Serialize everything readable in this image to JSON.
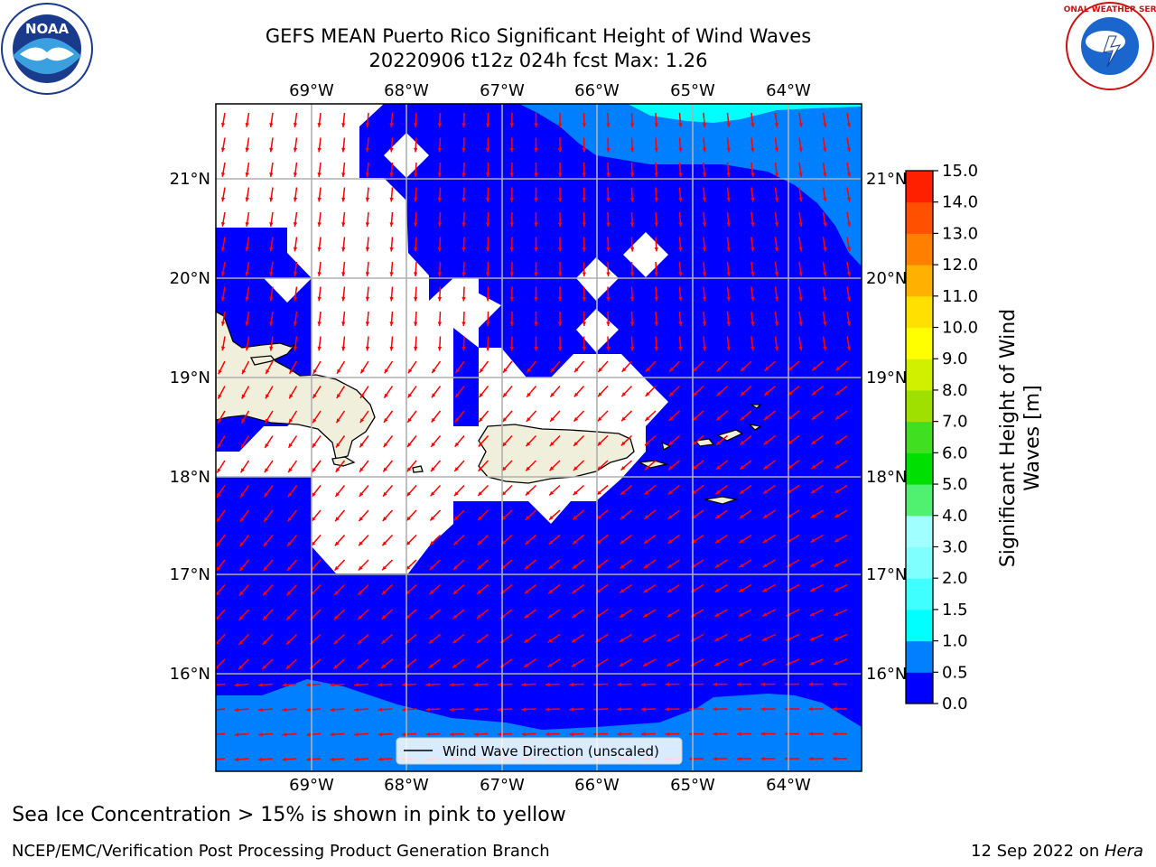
{
  "title": {
    "line1": "GEFS MEAN Puerto Rico Significant Height of Wind Waves",
    "line2": "20220906 t12z 024h fcst   Max: 1.26"
  },
  "map": {
    "longitude_labels": [
      "69°W",
      "68°W",
      "67°W",
      "66°W",
      "65°W",
      "64°W"
    ],
    "latitude_labels": [
      "21°N",
      "20°N",
      "19°N",
      "18°N",
      "17°N",
      "16°N"
    ],
    "legend_label": "Wind Wave Direction (unscaled)",
    "ocean_color": "#0000ff",
    "band_color": "#0080ff",
    "cyan_color": "#00ffff",
    "land_color": "#efefdc",
    "arrow_color": "#ff0000"
  },
  "colorbar": {
    "label_line1": "Significant Height of Wind",
    "label_line2": "Waves [m]",
    "tick_labels": [
      "0.0",
      "0.5",
      "1.0",
      "1.5",
      "2.0",
      "3.0",
      "4.0",
      "5.0",
      "6.0",
      "7.0",
      "8.0",
      "9.0",
      "10.0",
      "11.0",
      "12.0",
      "13.0",
      "14.0",
      "15.0"
    ],
    "colors": [
      "#0000ff",
      "#0080ff",
      "#00ffff",
      "#40ffff",
      "#80ffff",
      "#a0ffff",
      "#50f070",
      "#00e000",
      "#40e020",
      "#a0e000",
      "#d0f000",
      "#ffff00",
      "#ffe000",
      "#ffb000",
      "#ff8000",
      "#ff5000",
      "#ff2000"
    ]
  },
  "ice_note": "Sea Ice Concentration > 15% is shown in pink to yellow",
  "footer": {
    "left": "NCEP/EMC/Verification Post Processing Product Generation Branch",
    "right_prefix": "12 Sep 2022 on ",
    "right_machine": "Hera"
  },
  "logos": {
    "noaa_text": "NOAA",
    "nws_text": "NATIONAL WEATHER SERVICE"
  }
}
